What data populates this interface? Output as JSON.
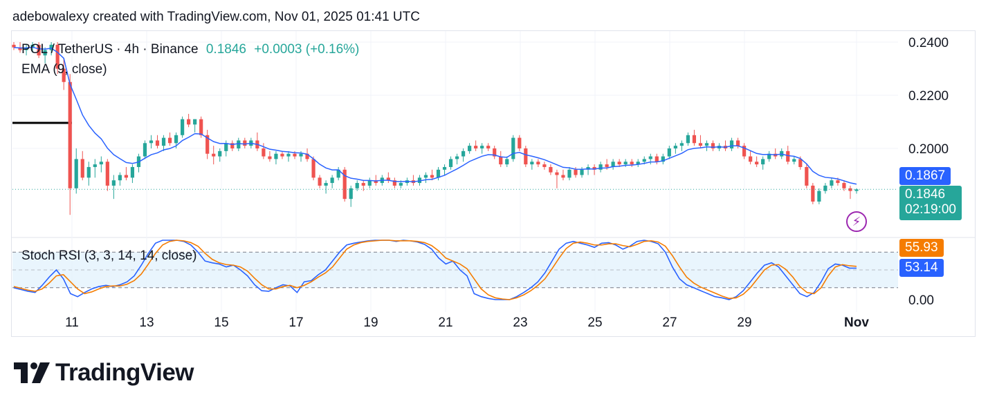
{
  "header": {
    "attribution": "adebowalexy created with TradingView.com, Nov 01, 2025 01:41 UTC"
  },
  "legend": {
    "symbol": "POL / TetherUS · 4h · Binance",
    "last": "0.1846",
    "change": "+0.0003 (+0.16%)",
    "ema": "EMA (9, close)",
    "stoch": "Stoch RSI (3, 3, 14, 14, close)"
  },
  "tags": {
    "ema_value": "0.1867",
    "price_value": "0.1846",
    "countdown": "02:19:00",
    "stoch_d": "55.93",
    "stoch_k": "53.14"
  },
  "colors": {
    "up": "#26a69a",
    "down": "#ef5350",
    "ema": "#2962ff",
    "k": "#2962ff",
    "d": "#f57c00",
    "band": "#e3f2fd"
  },
  "logo": {
    "text": "TradingView"
  },
  "chart_data": [
    {
      "type": "candlestick",
      "title": "POL / TetherUS · 4h · Binance",
      "y_axis": {
        "ticks": [
          0.24,
          0.22,
          0.2
        ],
        "tick_labels": [
          "0.2400",
          "0.2200",
          "0.2000"
        ]
      },
      "x_axis": {
        "tick_labels": [
          "11",
          "13",
          "15",
          "17",
          "19",
          "21",
          "23",
          "25",
          "27",
          "29",
          "Nov"
        ]
      },
      "ohlc_approx": [
        [
          0.239,
          0.24,
          0.237,
          0.238
        ],
        [
          0.238,
          0.24,
          0.236,
          0.237
        ],
        [
          0.237,
          0.239,
          0.235,
          0.238
        ],
        [
          0.238,
          0.24,
          0.236,
          0.239
        ],
        [
          0.239,
          0.24,
          0.234,
          0.235
        ],
        [
          0.235,
          0.238,
          0.232,
          0.237
        ],
        [
          0.237,
          0.24,
          0.235,
          0.239
        ],
        [
          0.239,
          0.24,
          0.228,
          0.23
        ],
        [
          0.23,
          0.234,
          0.222,
          0.225
        ],
        [
          0.225,
          0.228,
          0.175,
          0.185
        ],
        [
          0.185,
          0.2,
          0.183,
          0.196
        ],
        [
          0.196,
          0.199,
          0.188,
          0.189
        ],
        [
          0.189,
          0.195,
          0.186,
          0.193
        ],
        [
          0.193,
          0.196,
          0.189,
          0.194
        ],
        [
          0.194,
          0.197,
          0.191,
          0.195
        ],
        [
          0.195,
          0.196,
          0.184,
          0.186
        ],
        [
          0.186,
          0.19,
          0.181,
          0.188
        ],
        [
          0.188,
          0.191,
          0.186,
          0.19
        ],
        [
          0.19,
          0.193,
          0.188,
          0.189
        ],
        [
          0.189,
          0.194,
          0.187,
          0.193
        ],
        [
          0.193,
          0.198,
          0.191,
          0.197
        ],
        [
          0.197,
          0.203,
          0.196,
          0.202
        ],
        [
          0.202,
          0.205,
          0.2,
          0.203
        ],
        [
          0.203,
          0.205,
          0.2,
          0.201
        ],
        [
          0.201,
          0.205,
          0.199,
          0.204
        ],
        [
          0.204,
          0.206,
          0.201,
          0.202
        ],
        [
          0.202,
          0.206,
          0.2,
          0.205
        ],
        [
          0.205,
          0.212,
          0.204,
          0.211
        ],
        [
          0.211,
          0.213,
          0.208,
          0.209
        ],
        [
          0.209,
          0.211,
          0.206,
          0.211
        ],
        [
          0.211,
          0.212,
          0.204,
          0.205
        ],
        [
          0.205,
          0.207,
          0.196,
          0.198
        ],
        [
          0.198,
          0.201,
          0.194,
          0.197
        ],
        [
          0.197,
          0.2,
          0.195,
          0.199
        ],
        [
          0.199,
          0.203,
          0.197,
          0.202
        ],
        [
          0.202,
          0.203,
          0.199,
          0.2
        ],
        [
          0.2,
          0.204,
          0.199,
          0.203
        ],
        [
          0.203,
          0.204,
          0.2,
          0.201
        ],
        [
          0.201,
          0.204,
          0.2,
          0.203
        ],
        [
          0.203,
          0.206,
          0.199,
          0.2
        ],
        [
          0.2,
          0.202,
          0.196,
          0.197
        ],
        [
          0.197,
          0.199,
          0.195,
          0.196
        ],
        [
          0.196,
          0.199,
          0.194,
          0.198
        ],
        [
          0.198,
          0.199,
          0.196,
          0.197
        ],
        [
          0.197,
          0.199,
          0.195,
          0.198
        ],
        [
          0.198,
          0.199,
          0.196,
          0.197
        ],
        [
          0.197,
          0.199,
          0.195,
          0.198
        ],
        [
          0.198,
          0.2,
          0.195,
          0.196
        ],
        [
          0.196,
          0.197,
          0.188,
          0.189
        ],
        [
          0.189,
          0.19,
          0.185,
          0.186
        ],
        [
          0.186,
          0.188,
          0.183,
          0.187
        ],
        [
          0.187,
          0.19,
          0.185,
          0.189
        ],
        [
          0.189,
          0.193,
          0.188,
          0.192
        ],
        [
          0.192,
          0.193,
          0.18,
          0.181
        ],
        [
          0.181,
          0.186,
          0.178,
          0.185
        ],
        [
          0.185,
          0.188,
          0.184,
          0.187
        ],
        [
          0.187,
          0.188,
          0.184,
          0.186
        ],
        [
          0.186,
          0.189,
          0.185,
          0.188
        ],
        [
          0.188,
          0.19,
          0.186,
          0.187
        ],
        [
          0.187,
          0.19,
          0.186,
          0.189
        ],
        [
          0.189,
          0.191,
          0.187,
          0.188
        ],
        [
          0.188,
          0.189,
          0.185,
          0.186
        ],
        [
          0.186,
          0.188,
          0.185,
          0.187
        ],
        [
          0.187,
          0.189,
          0.186,
          0.188
        ],
        [
          0.188,
          0.19,
          0.186,
          0.187
        ],
        [
          0.187,
          0.19,
          0.186,
          0.189
        ],
        [
          0.189,
          0.191,
          0.187,
          0.19
        ],
        [
          0.19,
          0.192,
          0.188,
          0.189
        ],
        [
          0.189,
          0.193,
          0.188,
          0.192
        ],
        [
          0.192,
          0.194,
          0.19,
          0.193
        ],
        [
          0.193,
          0.197,
          0.192,
          0.196
        ],
        [
          0.196,
          0.198,
          0.194,
          0.197
        ],
        [
          0.197,
          0.2,
          0.195,
          0.199
        ],
        [
          0.199,
          0.202,
          0.198,
          0.201
        ],
        [
          0.201,
          0.203,
          0.199,
          0.2
        ],
        [
          0.2,
          0.202,
          0.198,
          0.201
        ],
        [
          0.201,
          0.202,
          0.199,
          0.2
        ],
        [
          0.2,
          0.201,
          0.196,
          0.197
        ],
        [
          0.197,
          0.199,
          0.193,
          0.194
        ],
        [
          0.194,
          0.197,
          0.193,
          0.196
        ],
        [
          0.196,
          0.205,
          0.195,
          0.204
        ],
        [
          0.204,
          0.205,
          0.199,
          0.2
        ],
        [
          0.2,
          0.201,
          0.193,
          0.194
        ],
        [
          0.194,
          0.196,
          0.192,
          0.195
        ],
        [
          0.195,
          0.196,
          0.193,
          0.194
        ],
        [
          0.194,
          0.195,
          0.192,
          0.193
        ],
        [
          0.193,
          0.194,
          0.19,
          0.191
        ],
        [
          0.191,
          0.192,
          0.185,
          0.19
        ],
        [
          0.19,
          0.192,
          0.188,
          0.189
        ],
        [
          0.189,
          0.193,
          0.188,
          0.192
        ],
        [
          0.192,
          0.193,
          0.189,
          0.19
        ],
        [
          0.19,
          0.193,
          0.189,
          0.192
        ],
        [
          0.192,
          0.194,
          0.19,
          0.193
        ],
        [
          0.193,
          0.194,
          0.19,
          0.192
        ],
        [
          0.192,
          0.195,
          0.191,
          0.194
        ],
        [
          0.194,
          0.196,
          0.192,
          0.193
        ],
        [
          0.193,
          0.196,
          0.192,
          0.195
        ],
        [
          0.195,
          0.196,
          0.193,
          0.194
        ],
        [
          0.194,
          0.196,
          0.193,
          0.195
        ],
        [
          0.195,
          0.196,
          0.193,
          0.194
        ],
        [
          0.194,
          0.196,
          0.193,
          0.195
        ],
        [
          0.195,
          0.197,
          0.194,
          0.196
        ],
        [
          0.196,
          0.198,
          0.194,
          0.197
        ],
        [
          0.197,
          0.198,
          0.194,
          0.195
        ],
        [
          0.195,
          0.198,
          0.194,
          0.197
        ],
        [
          0.197,
          0.201,
          0.196,
          0.2
        ],
        [
          0.2,
          0.202,
          0.198,
          0.201
        ],
        [
          0.201,
          0.203,
          0.199,
          0.202
        ],
        [
          0.202,
          0.206,
          0.201,
          0.205
        ],
        [
          0.205,
          0.207,
          0.201,
          0.202
        ],
        [
          0.202,
          0.205,
          0.2,
          0.201
        ],
        [
          0.201,
          0.203,
          0.199,
          0.202
        ],
        [
          0.202,
          0.203,
          0.199,
          0.2
        ],
        [
          0.2,
          0.202,
          0.199,
          0.201
        ],
        [
          0.201,
          0.203,
          0.199,
          0.2
        ],
        [
          0.2,
          0.204,
          0.199,
          0.203
        ],
        [
          0.203,
          0.204,
          0.2,
          0.201
        ],
        [
          0.201,
          0.202,
          0.196,
          0.197
        ],
        [
          0.197,
          0.199,
          0.194,
          0.195
        ],
        [
          0.195,
          0.197,
          0.193,
          0.194
        ],
        [
          0.194,
          0.197,
          0.192,
          0.196
        ],
        [
          0.196,
          0.199,
          0.195,
          0.198
        ],
        [
          0.198,
          0.2,
          0.196,
          0.197
        ],
        [
          0.197,
          0.2,
          0.196,
          0.199
        ],
        [
          0.199,
          0.201,
          0.194,
          0.195
        ],
        [
          0.195,
          0.197,
          0.194,
          0.196
        ],
        [
          0.196,
          0.197,
          0.192,
          0.193
        ],
        [
          0.193,
          0.194,
          0.185,
          0.186
        ],
        [
          0.186,
          0.187,
          0.179,
          0.18
        ],
        [
          0.18,
          0.185,
          0.179,
          0.184
        ],
        [
          0.184,
          0.187,
          0.183,
          0.186
        ],
        [
          0.186,
          0.189,
          0.185,
          0.188
        ],
        [
          0.188,
          0.189,
          0.186,
          0.187
        ],
        [
          0.187,
          0.188,
          0.184,
          0.185
        ],
        [
          0.185,
          0.186,
          0.181,
          0.184
        ],
        [
          0.184,
          0.185,
          0.183,
          0.1846
        ]
      ],
      "ema_9": {
        "last": 0.1867
      },
      "last_price": 0.1846
    },
    {
      "type": "line",
      "title": "Stoch RSI (3, 3, 14, 14, close)",
      "y_axis": {
        "tick_labels": [
          "0.00"
        ],
        "bands": [
          80,
          20
        ]
      },
      "series": [
        {
          "name": "K",
          "last": 53.14,
          "values": [
            20,
            17,
            14,
            12,
            24,
            38,
            50,
            35,
            10,
            5,
            12,
            18,
            22,
            24,
            22,
            25,
            30,
            40,
            58,
            78,
            95,
            100,
            100,
            100,
            98,
            92,
            80,
            65,
            62,
            60,
            55,
            58,
            50,
            40,
            25,
            15,
            14,
            20,
            25,
            23,
            12,
            30,
            32,
            42,
            50,
            65,
            80,
            92,
            95,
            97,
            99,
            100,
            100,
            100,
            98,
            100,
            99,
            97,
            93,
            85,
            70,
            60,
            65,
            50,
            40,
            10,
            5,
            2,
            0,
            0,
            0,
            5,
            12,
            20,
            30,
            45,
            65,
            85,
            95,
            98,
            95,
            92,
            88,
            95,
            96,
            92,
            85,
            90,
            98,
            100,
            98,
            94,
            80,
            55,
            35,
            25,
            20,
            15,
            10,
            5,
            3,
            0,
            5,
            15,
            30,
            45,
            58,
            62,
            55,
            40,
            25,
            10,
            5,
            12,
            30,
            52,
            60,
            58,
            53,
            53
          ],
          "color": "#2962ff"
        },
        {
          "name": "D",
          "last": 55.93,
          "values": [
            22,
            19,
            16,
            14,
            18,
            28,
            40,
            42,
            30,
            18,
            10,
            13,
            18,
            22,
            23,
            23,
            26,
            32,
            43,
            60,
            78,
            92,
            98,
            100,
            99,
            96,
            90,
            78,
            68,
            62,
            59,
            58,
            55,
            48,
            36,
            25,
            18,
            18,
            22,
            24,
            20,
            24,
            30,
            38,
            45,
            55,
            70,
            85,
            92,
            96,
            98,
            99,
            100,
            100,
            99,
            99,
            99,
            98,
            96,
            91,
            82,
            70,
            65,
            60,
            52,
            35,
            18,
            8,
            3,
            1,
            0,
            3,
            8,
            15,
            24,
            35,
            52,
            70,
            86,
            95,
            97,
            95,
            92,
            92,
            94,
            94,
            91,
            89,
            93,
            98,
            99,
            97,
            90,
            74,
            55,
            38,
            28,
            21,
            16,
            11,
            6,
            2,
            3,
            9,
            20,
            35,
            50,
            58,
            59,
            51,
            38,
            22,
            12,
            10,
            20,
            40,
            55,
            59,
            57,
            56
          ],
          "color": "#f57c00"
        }
      ]
    }
  ]
}
